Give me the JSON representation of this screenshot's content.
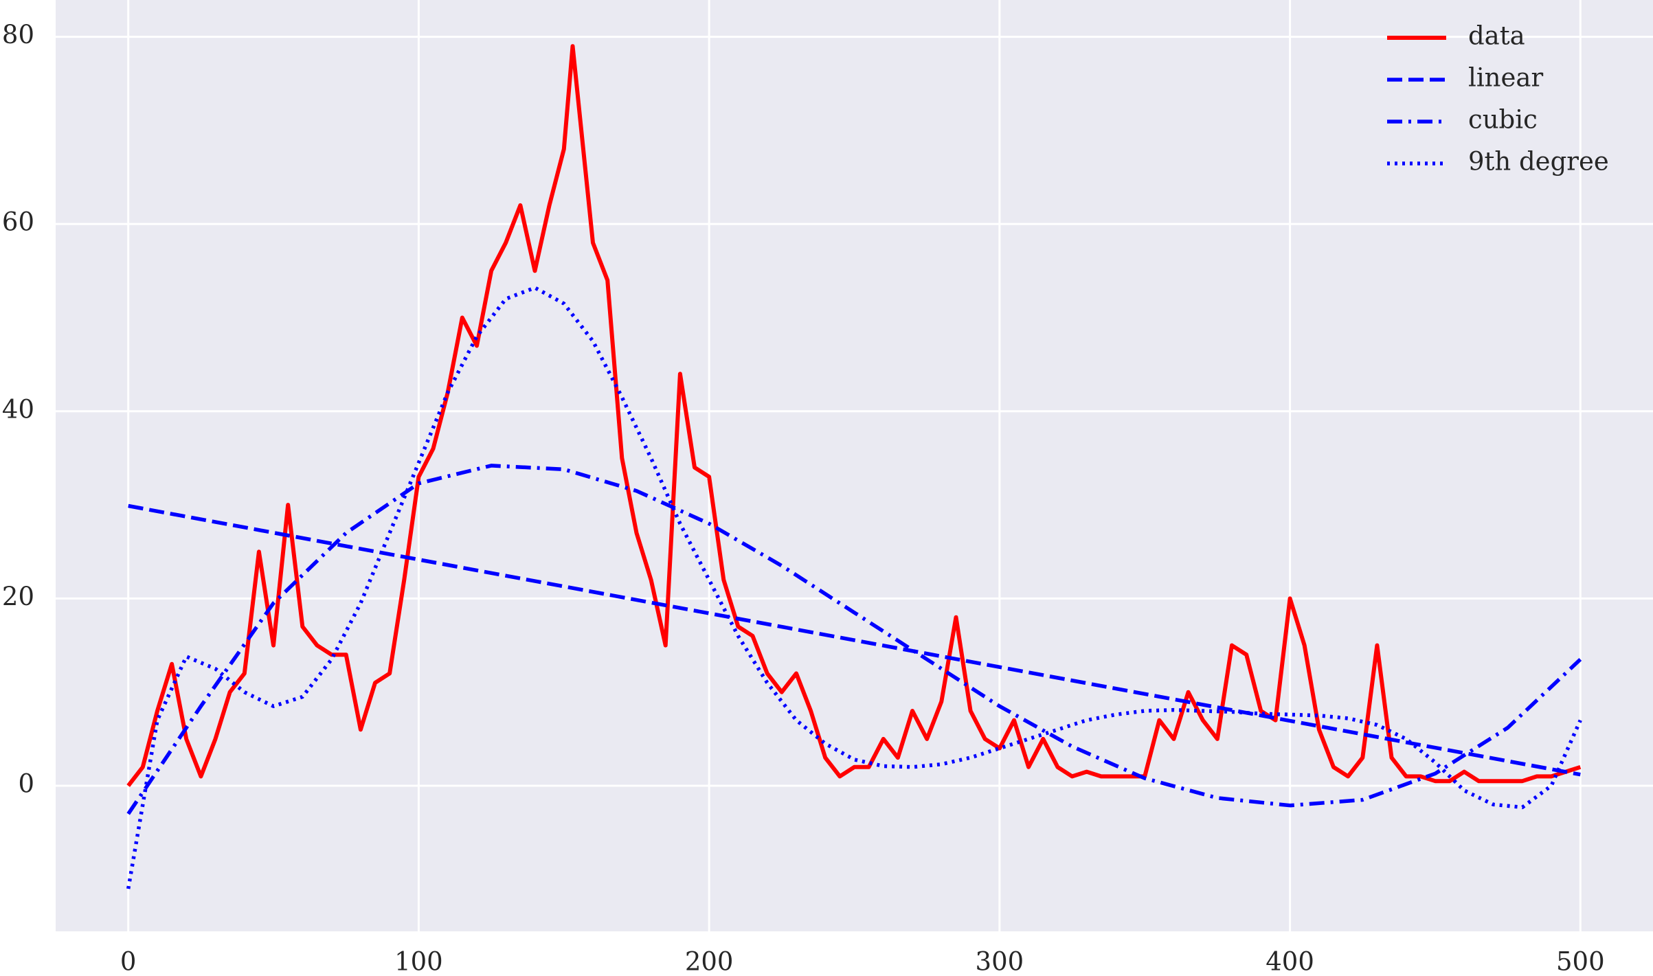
{
  "chart_data": {
    "type": "line",
    "xlim": [
      -25,
      525
    ],
    "ylim": [
      -15.55,
      83.93
    ],
    "xticks": [
      0,
      100,
      200,
      300,
      400,
      500
    ],
    "yticks": [
      0,
      20,
      40,
      60,
      80
    ],
    "grid": true,
    "legend": "upper right",
    "series": [
      {
        "name": "data",
        "color": "#ff0000",
        "linestyle": "solid",
        "x": [
          0,
          5,
          10,
          15,
          20,
          25,
          30,
          35,
          40,
          45,
          50,
          55,
          60,
          65,
          70,
          75,
          80,
          85,
          90,
          95,
          100,
          105,
          110,
          115,
          120,
          125,
          130,
          135,
          140,
          145,
          150,
          153,
          160,
          165,
          170,
          175,
          180,
          185,
          190,
          195,
          200,
          205,
          210,
          215,
          220,
          225,
          230,
          235,
          240,
          245,
          250,
          255,
          260,
          265,
          270,
          275,
          280,
          285,
          290,
          295,
          300,
          305,
          310,
          315,
          320,
          325,
          330,
          335,
          340,
          345,
          350,
          355,
          360,
          365,
          370,
          375,
          380,
          385,
          390,
          395,
          400,
          405,
          410,
          415,
          420,
          425,
          430,
          435,
          440,
          445,
          450,
          455,
          460,
          465,
          470,
          475,
          480,
          485,
          490,
          495,
          500
        ],
        "values": [
          0,
          2,
          8,
          13,
          5,
          1,
          5,
          10,
          12,
          25,
          15,
          30,
          17,
          15,
          14,
          14,
          6,
          11,
          12,
          22,
          33,
          36,
          42,
          50,
          47,
          55,
          58,
          62,
          55,
          62,
          68,
          79,
          58,
          54,
          35,
          27,
          22,
          15,
          44,
          34,
          33,
          22,
          17,
          16,
          12,
          10,
          12,
          8,
          3,
          1,
          2,
          2,
          5,
          3,
          8,
          5,
          9,
          18,
          8,
          5,
          4,
          7,
          2,
          5,
          2,
          1,
          1.5,
          1,
          1,
          1,
          1,
          7,
          5,
          10,
          7,
          5,
          15,
          14,
          8,
          7,
          20,
          15,
          6,
          2,
          1,
          3,
          15,
          3,
          1,
          1,
          0.5,
          0.5,
          1.5,
          0.5,
          0.5,
          0.5,
          0.5,
          1,
          1,
          1.5,
          2
        ]
      },
      {
        "name": "linear",
        "color": "#0000ff",
        "linestyle": "dashed",
        "x": [
          0,
          500
        ],
        "values": [
          29.9,
          1.2
        ]
      },
      {
        "name": "cubic",
        "color": "#0000ff",
        "linestyle": "dashdot",
        "x": [
          0,
          25,
          50,
          75,
          100,
          125,
          150,
          175,
          200,
          225,
          250,
          275,
          300,
          325,
          350,
          375,
          400,
          425,
          450,
          475,
          500
        ],
        "values": [
          -3,
          8.5,
          19.5,
          27,
          32.3,
          34.2,
          33.8,
          31.5,
          28,
          23.5,
          18.5,
          13.5,
          8.5,
          4.2,
          0.8,
          -1.3,
          -2.1,
          -1.5,
          1.3,
          6.2,
          13.5
        ]
      },
      {
        "name": "9th degree",
        "color": "#0000ff",
        "linestyle": "dotted",
        "x": [
          0,
          10,
          20,
          30,
          40,
          50,
          60,
          70,
          80,
          90,
          100,
          110,
          120,
          130,
          140,
          150,
          160,
          170,
          180,
          190,
          200,
          210,
          220,
          230,
          240,
          250,
          260,
          270,
          280,
          290,
          300,
          310,
          320,
          330,
          340,
          350,
          360,
          370,
          380,
          390,
          400,
          410,
          420,
          430,
          440,
          450,
          460,
          470,
          480,
          490,
          500
        ],
        "values": [
          -11,
          7,
          13.8,
          12.5,
          10,
          8.5,
          9.5,
          13.5,
          19.5,
          27,
          34.5,
          42,
          48,
          52,
          53.2,
          51.5,
          47.5,
          41.5,
          35,
          28,
          22,
          16,
          11,
          7,
          4.5,
          2.8,
          2.1,
          2,
          2.3,
          3,
          4,
          5,
          6,
          7,
          7.6,
          8,
          8.1,
          8,
          7.9,
          7.7,
          7.6,
          7.5,
          7.2,
          6.5,
          5,
          2.5,
          -0.5,
          -2,
          -2.3,
          0,
          7
        ]
      }
    ]
  }
}
